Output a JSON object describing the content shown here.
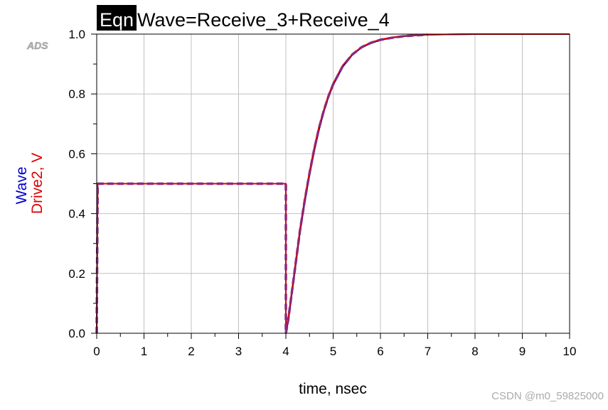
{
  "header": {
    "eqn_badge": "Eqn",
    "equation": "Wave=Receive_3+Receive_4",
    "ads_logo": "ADS"
  },
  "watermark": "CSDN @m0_59825000",
  "colors": {
    "wave": "#0000cc",
    "drive2": "#dd0000",
    "grid": "#c0c0c0",
    "axis": "#000000"
  },
  "chart_data": {
    "type": "line",
    "title": "",
    "xlabel": "time, nsec",
    "ylabel_series": [
      "Wave",
      "Drive2, V"
    ],
    "xlim": [
      0,
      10
    ],
    "ylim": [
      0,
      1.0
    ],
    "x_ticks": [
      0,
      1,
      2,
      3,
      4,
      5,
      6,
      7,
      8,
      9,
      10
    ],
    "y_ticks": [
      0.0,
      0.2,
      0.4,
      0.6,
      0.8,
      1.0
    ],
    "x_tick_labels": [
      "0",
      "1",
      "2",
      "3",
      "4",
      "5",
      "6",
      "7",
      "8",
      "9",
      "10"
    ],
    "y_tick_labels": [
      "0.0",
      "0.2",
      "0.4",
      "0.6",
      "0.8",
      "1.0"
    ],
    "grid": true,
    "series": [
      {
        "name": "Wave",
        "color": "#0000cc",
        "style": "solid",
        "x": [
          0,
          0.02,
          4.0,
          4.0,
          4.05,
          4.1,
          4.2,
          4.3,
          4.4,
          4.5,
          4.6,
          4.7,
          4.8,
          4.9,
          5.0,
          5.2,
          5.4,
          5.6,
          5.8,
          6.0,
          6.25,
          6.5,
          6.75,
          7.0,
          7.5,
          8.0,
          9.0,
          10.0
        ],
        "y": [
          0,
          0.5,
          0.5,
          0.0,
          0.04,
          0.1,
          0.22,
          0.34,
          0.44,
          0.53,
          0.61,
          0.68,
          0.74,
          0.79,
          0.83,
          0.89,
          0.93,
          0.955,
          0.97,
          0.98,
          0.988,
          0.993,
          0.996,
          0.998,
          0.999,
          1.0,
          1.0,
          1.0
        ]
      },
      {
        "name": "Drive2, V",
        "color": "#dd0000",
        "style": "solid",
        "x": [
          0,
          0.02,
          4.0,
          4.0,
          4.05,
          4.1,
          4.2,
          4.3,
          4.4,
          4.5,
          4.6,
          4.7,
          4.8,
          4.9,
          5.0,
          5.2,
          5.4,
          5.6,
          5.8,
          6.0,
          6.25,
          6.5,
          6.75,
          7.0,
          7.5,
          8.0,
          9.0,
          10.0
        ],
        "y": [
          0,
          0.5,
          0.5,
          0.0,
          0.05,
          0.11,
          0.23,
          0.35,
          0.45,
          0.54,
          0.62,
          0.69,
          0.745,
          0.795,
          0.835,
          0.895,
          0.932,
          0.957,
          0.972,
          0.982,
          0.989,
          0.994,
          0.996,
          0.998,
          0.999,
          1.0,
          1.0,
          1.0
        ]
      },
      {
        "name": "Wave-dashed-overlay",
        "color": "#8a2a7a",
        "style": "dashed",
        "x": [
          0,
          0.02,
          4.0,
          4.0,
          4.05,
          4.1,
          4.2,
          4.3,
          4.4,
          4.5,
          4.6,
          4.7,
          4.8,
          4.9,
          5.0,
          5.2,
          5.4,
          5.6,
          5.8,
          6.0,
          6.25,
          6.5,
          6.75,
          7.0
        ],
        "y": [
          0,
          0.5,
          0.5,
          0.0,
          0.045,
          0.105,
          0.225,
          0.345,
          0.445,
          0.535,
          0.615,
          0.685,
          0.743,
          0.792,
          0.832,
          0.892,
          0.931,
          0.956,
          0.971,
          0.981,
          0.988,
          0.993,
          0.996,
          0.998
        ]
      }
    ]
  }
}
